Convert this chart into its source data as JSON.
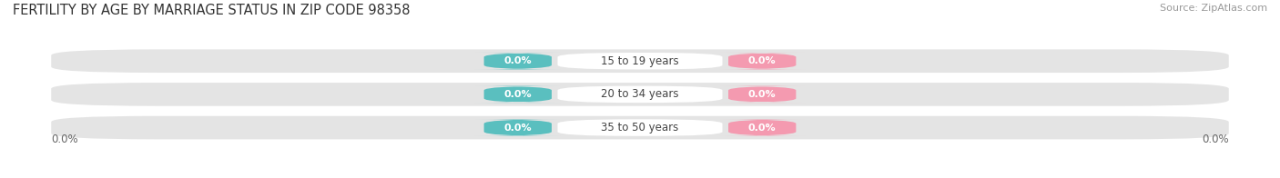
{
  "title": "FERTILITY BY AGE BY MARRIAGE STATUS IN ZIP CODE 98358",
  "source": "Source: ZipAtlas.com",
  "categories": [
    "15 to 19 years",
    "20 to 34 years",
    "35 to 50 years"
  ],
  "married_values": [
    0.0,
    0.0,
    0.0
  ],
  "unmarried_values": [
    0.0,
    0.0,
    0.0
  ],
  "married_color": "#5abfbf",
  "unmarried_color": "#f49ab0",
  "bar_bg_color": "#e4e4e4",
  "title_fontsize": 10.5,
  "source_fontsize": 8,
  "label_fontsize": 8.5,
  "value_fontsize": 8,
  "tick_fontsize": 8.5,
  "legend_fontsize": 9,
  "left_label": "0.0%",
  "right_label": "0.0%",
  "background_color": "#ffffff",
  "fig_width": 14.06,
  "fig_height": 1.96
}
